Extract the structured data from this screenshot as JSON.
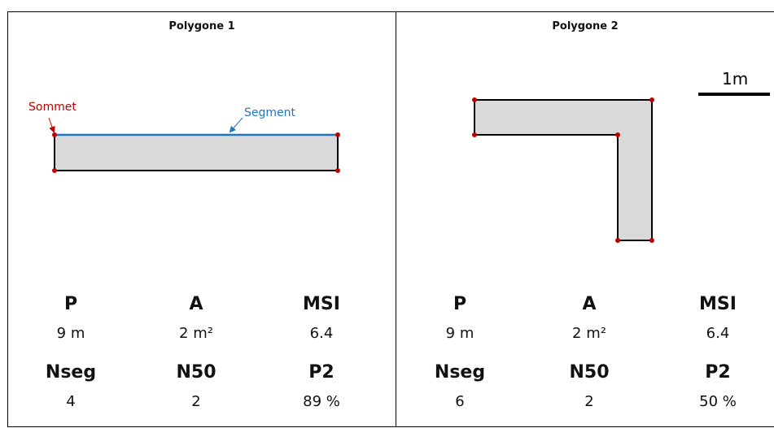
{
  "scale_bar": {
    "label": "1m"
  },
  "polygons": [
    {
      "title": "Polygone 1",
      "annotations": {
        "vertex": "Sommet",
        "segment": "Segment"
      },
      "metrics": [
        {
          "name": "P",
          "value": "9 m"
        },
        {
          "name": "A",
          "value": "2 m²"
        },
        {
          "name": "MSI",
          "value": "6.4"
        },
        {
          "name": "Nseg",
          "value": "4"
        },
        {
          "name": "N50",
          "value": "2"
        },
        {
          "name": "P2",
          "value": "89 %"
        }
      ]
    },
    {
      "title": "Polygone 2",
      "metrics": [
        {
          "name": "P",
          "value": "9 m"
        },
        {
          "name": "A",
          "value": "2 m²"
        },
        {
          "name": "MSI",
          "value": "6.4"
        },
        {
          "name": "Nseg",
          "value": "6"
        },
        {
          "name": "N50",
          "value": "2"
        },
        {
          "name": "P2",
          "value": "50 %"
        }
      ]
    }
  ],
  "colors": {
    "fill": "#d9d9d9",
    "vertex": "#c00000",
    "segment": "#1f77c4",
    "vertex_label": "#c00000",
    "segment_label": "#1f77c4"
  }
}
